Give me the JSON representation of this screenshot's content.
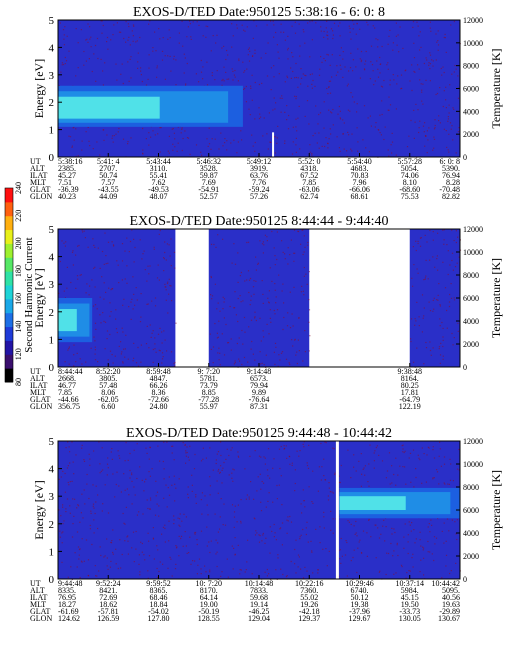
{
  "colors": {
    "plot_background": "#2a2fc8",
    "noise": "#8a0a2a",
    "band_core": "#59f0e8",
    "band_mid": "#1f8de6",
    "band_outer": "#1c5fe0",
    "colorbar": [
      "#000000",
      "#3a0f6e",
      "#2214a6",
      "#1f3bd8",
      "#1d6fe6",
      "#1aa8e8",
      "#1ed4d8",
      "#2fe2a6",
      "#56e866",
      "#9ef02e",
      "#e8f01a",
      "#ffb010",
      "#ff6010",
      "#ff1010"
    ]
  },
  "colorbar": {
    "label": "Second Harmonic Current",
    "ticks": [
      "80",
      "120",
      "140",
      "160",
      "180",
      "200",
      "220",
      "240"
    ]
  },
  "chart_data": [
    {
      "type": "heatmap",
      "title": "EXOS-D/TED   Date:950125  5:38:16 - 6: 0: 8",
      "ylabel": "Energy [eV]",
      "ylabel_right": "Temperature [K]",
      "ylim": [
        0,
        5
      ],
      "yticks": [
        "0",
        "1",
        "2",
        "3",
        "4",
        "5"
      ],
      "ylim_right": [
        0,
        12000
      ],
      "yticks_right": [
        "0",
        "2000",
        "4000",
        "6000",
        "8000",
        "10000",
        "12000"
      ],
      "band": {
        "from_frac": 0.0,
        "to_frac": 0.46,
        "energy_low": 1.1,
        "energy_high": 2.6,
        "core_low": 1.4,
        "core_high": 2.2
      },
      "gaps": [],
      "divider_frac": null,
      "spike": {
        "frac": 0.535,
        "height_ev": 0.9
      },
      "rows": [
        "UT",
        "ALT",
        "ILAT",
        "MLT",
        "GLAT",
        "GLON"
      ],
      "columns": [
        {
          "frac": 0.0,
          "values": [
            "5:38:16",
            "2385.",
            "45.27",
            "7.51",
            "-36.39",
            "40.23"
          ]
        },
        {
          "frac": 0.125,
          "values": [
            "5:41: 4",
            "2707.",
            "50.74",
            "7.57",
            "-43.55",
            "44.09"
          ]
        },
        {
          "frac": 0.25,
          "values": [
            "5:43:44",
            "3110.",
            "55.41",
            "7.62",
            "-49.53",
            "48.07"
          ]
        },
        {
          "frac": 0.375,
          "values": [
            "5:46:32",
            "3528.",
            "59.87",
            "7.69",
            "-54.91",
            "52.57"
          ]
        },
        {
          "frac": 0.5,
          "values": [
            "5:49:12",
            "3919.",
            "63.76",
            "7.76",
            "-59.24",
            "57.26"
          ]
        },
        {
          "frac": 0.625,
          "values": [
            "5:52: 0",
            "4318.",
            "67.52",
            "7.85",
            "-63.06",
            "62.74"
          ]
        },
        {
          "frac": 0.75,
          "values": [
            "5:54:40",
            "4683.",
            "70.83",
            "7.96",
            "-66.06",
            "68.61"
          ]
        },
        {
          "frac": 0.875,
          "values": [
            "5:57:28",
            "5054.",
            "74.06",
            "8.10",
            "-68.60",
            "75.53"
          ]
        },
        {
          "frac": 1.0,
          "values": [
            "6: 0: 8",
            "5390.",
            "76.94",
            "8.28",
            "-70.48",
            "82.82"
          ]
        }
      ]
    },
    {
      "type": "heatmap",
      "title": "EXOS-D/TED   Date:950125  8:44:44 - 9:44:40",
      "ylabel": "Energy [eV]",
      "ylabel_right": "Temperature [K]",
      "ylim": [
        0,
        5
      ],
      "yticks": [
        "0",
        "1",
        "2",
        "3",
        "4",
        "5"
      ],
      "ylim_right": [
        0,
        12000
      ],
      "yticks_right": [
        "0",
        "2000",
        "4000",
        "6000",
        "8000",
        "10000",
        "12000"
      ],
      "band": {
        "from_frac": 0.0,
        "to_frac": 0.085,
        "energy_low": 0.9,
        "energy_high": 2.5,
        "core_low": 1.3,
        "core_high": 2.1
      },
      "gaps": [
        [
          0.292,
          0.375
        ],
        [
          0.625,
          0.875
        ]
      ],
      "divider_frac": null,
      "spike": null,
      "rows": [
        "UT",
        "ALT",
        "ILAT",
        "MLT",
        "GLAT",
        "GLON"
      ],
      "columns": [
        {
          "frac": 0.0,
          "values": [
            "8:44:44",
            "2668.",
            "46.77",
            "7.85",
            "-44.66",
            "356.75"
          ]
        },
        {
          "frac": 0.125,
          "values": [
            "8:52:20",
            "3805.",
            "57.48",
            "8.06",
            "-62.05",
            "6.60"
          ]
        },
        {
          "frac": 0.25,
          "values": [
            "8:59:48",
            "4847.",
            "66.26",
            "8.36",
            "-72.66",
            "24.80"
          ]
        },
        {
          "frac": 0.375,
          "values": [
            "9: 7:20",
            "5781.",
            "73.79",
            "8.85",
            "-77.28",
            "55.97"
          ]
        },
        {
          "frac": 0.5,
          "values": [
            "9:14:48",
            "6573.",
            "79.94",
            "9.89",
            "-76.64",
            "87.31"
          ]
        },
        {
          "frac": 0.875,
          "values": [
            "9:38:48",
            "8164.",
            "80.25",
            "17.81",
            "-64.79",
            "122.19"
          ]
        }
      ]
    },
    {
      "type": "heatmap",
      "title": "EXOS-D/TED   Date:950125  9:44:48 - 10:44:42",
      "ylabel": "Energy [eV]",
      "ylabel_right": "Temperature [K]",
      "ylim": [
        0,
        5
      ],
      "yticks": [
        "0",
        "1",
        "2",
        "3",
        "4",
        "5"
      ],
      "ylim_right": [
        0,
        12000
      ],
      "yticks_right": [
        "0",
        "2000",
        "4000",
        "6000",
        "8000",
        "10000",
        "12000"
      ],
      "band": {
        "from_frac": 0.7,
        "to_frac": 1.0,
        "energy_low": 2.2,
        "energy_high": 3.3,
        "core_low": 2.5,
        "core_high": 3.0
      },
      "gaps": [],
      "divider_frac": 0.695,
      "spike": null,
      "rows": [
        "UT",
        "ALT",
        "ILAT",
        "MLT",
        "GLAT",
        "GLON"
      ],
      "columns": [
        {
          "frac": 0.0,
          "values": [
            "9:44:48",
            "8335.",
            "76.95",
            "18.27",
            "-61.69",
            "124.62"
          ]
        },
        {
          "frac": 0.125,
          "values": [
            "9:52:24",
            "8421.",
            "72.69",
            "18.62",
            "-57.81",
            "126.59"
          ]
        },
        {
          "frac": 0.25,
          "values": [
            "9:59:52",
            "8365.",
            "68.46",
            "18.84",
            "-54.02",
            "127.80"
          ]
        },
        {
          "frac": 0.375,
          "values": [
            "10: 7:20",
            "8170.",
            "64.14",
            "19.00",
            "-50.19",
            "128.55"
          ]
        },
        {
          "frac": 0.5,
          "values": [
            "10:14:48",
            "7833.",
            "59.68",
            "19.14",
            "-46.25",
            "129.04"
          ]
        },
        {
          "frac": 0.625,
          "values": [
            "10:22:16",
            "7360.",
            "55.02",
            "19.26",
            "-42.18",
            "129.37"
          ]
        },
        {
          "frac": 0.75,
          "values": [
            "10:29:46",
            "6740.",
            "50.12",
            "19.38",
            "-37.96",
            "129.67"
          ]
        },
        {
          "frac": 0.875,
          "values": [
            "10:37:14",
            "5984.",
            "45.15",
            "19.50",
            "-33.73",
            "130.05"
          ]
        },
        {
          "frac": 1.0,
          "values": [
            "10:44:42",
            "5095.",
            "40.56",
            "19.63",
            "-29.89",
            "130.67"
          ]
        }
      ]
    }
  ]
}
